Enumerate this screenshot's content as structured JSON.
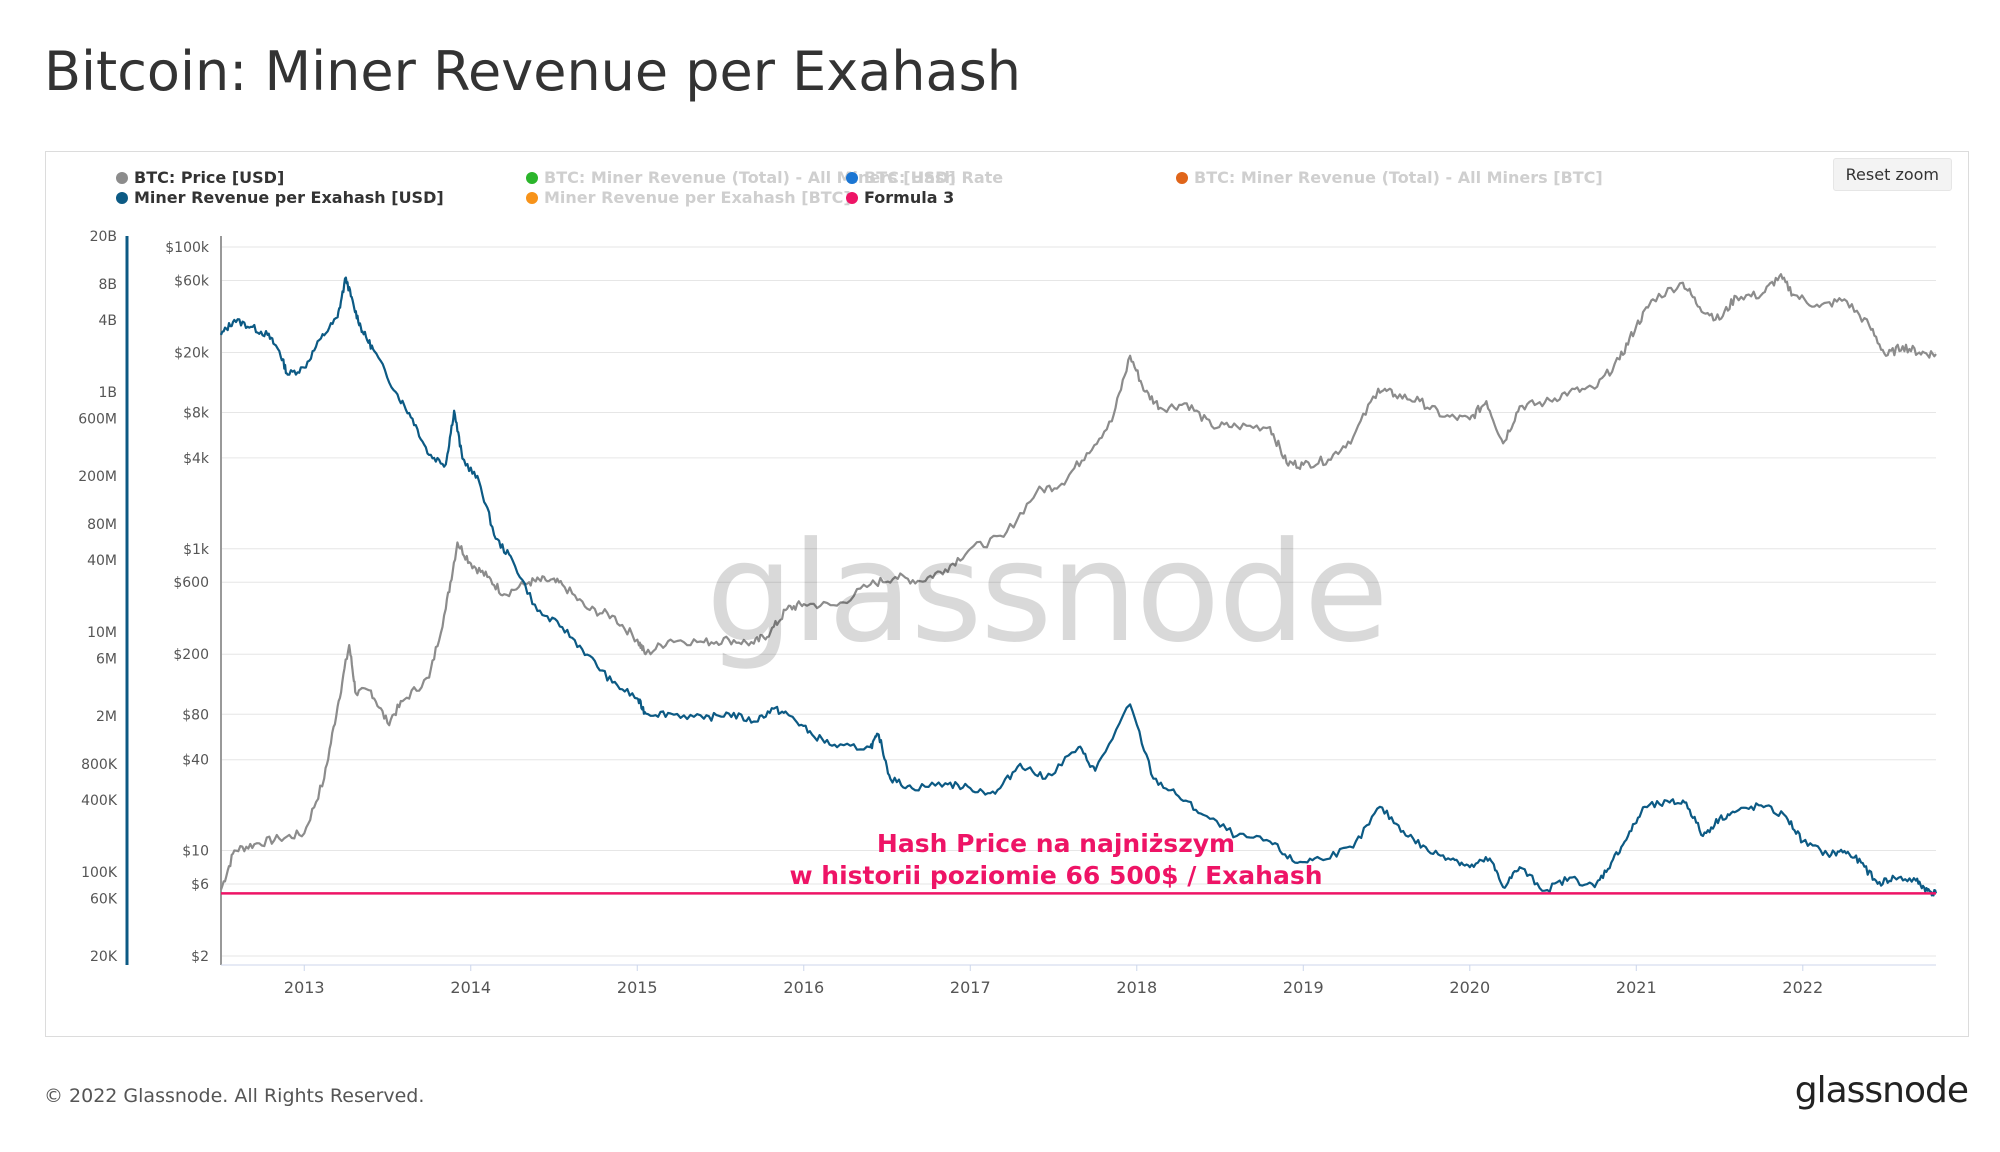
{
  "page": {
    "title": "Bitcoin: Miner Revenue per Exahash",
    "footer": "© 2022 Glassnode. All Rights Reserved.",
    "logo": "glassnode",
    "watermark": "glassnode"
  },
  "controls": {
    "reset_zoom": "Reset zoom"
  },
  "legend": [
    {
      "label": "BTC: Price [USD]",
      "color": "#8c8c8c",
      "active": true
    },
    {
      "label": "Miner Revenue per Exahash [USD]",
      "color": "#0c5a84",
      "active": true
    },
    {
      "label": "BTC: Miner Revenue (Total) - All Miners [USD]",
      "color": "#2bb52b",
      "active": false
    },
    {
      "label": "Miner Revenue per Exahash [BTC]",
      "color": "#f7931a",
      "active": false
    },
    {
      "label": "BTC: Hash Rate",
      "color": "#1b76d3",
      "active": false
    },
    {
      "label": "Formula 3",
      "color": "#ee1466",
      "active": true
    },
    {
      "label": "BTC: Miner Revenue (Total) - All Miners [BTC]",
      "color": "#e0651a",
      "active": false
    }
  ],
  "annotation": {
    "line1": "Hash Price na najniższym",
    "line2": "w historii poziomie 66 500$ / Exahash"
  },
  "chart_data": {
    "type": "line",
    "x_axis": {
      "ticks": [
        "2013",
        "2014",
        "2015",
        "2016",
        "2017",
        "2018",
        "2019",
        "2020",
        "2021",
        "2022"
      ],
      "range": [
        2012.5,
        2022.8
      ]
    },
    "y_axis_price": {
      "scale": "log",
      "range": [
        2,
        100000
      ],
      "ticks": [
        "$2",
        "$6",
        "$10",
        "$40",
        "$80",
        "$200",
        "$600",
        "$1k",
        "$4k",
        "$8k",
        "$20k",
        "$60k",
        "$100k"
      ]
    },
    "y_axis_revenue": {
      "scale": "log",
      "range": [
        20000,
        20000000000
      ],
      "ticks": [
        "20K",
        "60K",
        "100K",
        "400K",
        "800K",
        "2M",
        "6M",
        "10M",
        "40M",
        "80M",
        "200M",
        "600M",
        "1B",
        "4B",
        "8B",
        "20B"
      ]
    },
    "series": [
      {
        "name": "BTC: Price [USD]",
        "axis": "price",
        "color": "#8c8c8c",
        "points": [
          [
            2012.5,
            5.5
          ],
          [
            2012.58,
            10
          ],
          [
            2012.7,
            11
          ],
          [
            2012.85,
            12
          ],
          [
            2013.0,
            13
          ],
          [
            2013.12,
            30
          ],
          [
            2013.2,
            90
          ],
          [
            2013.27,
            230
          ],
          [
            2013.31,
            110
          ],
          [
            2013.4,
            115
          ],
          [
            2013.5,
            70
          ],
          [
            2013.6,
            100
          ],
          [
            2013.75,
            140
          ],
          [
            2013.85,
            400
          ],
          [
            2013.92,
            1100
          ],
          [
            2014.0,
            800
          ],
          [
            2014.1,
            650
          ],
          [
            2014.2,
            500
          ],
          [
            2014.35,
            600
          ],
          [
            2014.45,
            620
          ],
          [
            2014.55,
            580
          ],
          [
            2014.7,
            400
          ],
          [
            2014.85,
            360
          ],
          [
            2015.0,
            250
          ],
          [
            2015.05,
            200
          ],
          [
            2015.2,
            250
          ],
          [
            2015.4,
            240
          ],
          [
            2015.55,
            250
          ],
          [
            2015.7,
            235
          ],
          [
            2015.8,
            280
          ],
          [
            2015.9,
            400
          ],
          [
            2016.0,
            430
          ],
          [
            2016.2,
            420
          ],
          [
            2016.4,
            580
          ],
          [
            2016.55,
            650
          ],
          [
            2016.7,
            610
          ],
          [
            2016.85,
            730
          ],
          [
            2017.0,
            1000
          ],
          [
            2017.2,
            1200
          ],
          [
            2017.4,
            2400
          ],
          [
            2017.55,
            2700
          ],
          [
            2017.7,
            4300
          ],
          [
            2017.85,
            7000
          ],
          [
            2017.96,
            19000
          ],
          [
            2018.05,
            11000
          ],
          [
            2018.15,
            8500
          ],
          [
            2018.3,
            9200
          ],
          [
            2018.45,
            6500
          ],
          [
            2018.6,
            6500
          ],
          [
            2018.8,
            6400
          ],
          [
            2018.9,
            3700
          ],
          [
            2019.0,
            3600
          ],
          [
            2019.15,
            3900
          ],
          [
            2019.3,
            5500
          ],
          [
            2019.45,
            11500
          ],
          [
            2019.55,
            10500
          ],
          [
            2019.7,
            9500
          ],
          [
            2019.85,
            7500
          ],
          [
            2020.0,
            7200
          ],
          [
            2020.1,
            9500
          ],
          [
            2020.2,
            5000
          ],
          [
            2020.3,
            8800
          ],
          [
            2020.45,
            9300
          ],
          [
            2020.6,
            11000
          ],
          [
            2020.75,
            11500
          ],
          [
            2020.9,
            18000
          ],
          [
            2021.0,
            30000
          ],
          [
            2021.1,
            45000
          ],
          [
            2021.28,
            58000
          ],
          [
            2021.38,
            40000
          ],
          [
            2021.5,
            33000
          ],
          [
            2021.6,
            47000
          ],
          [
            2021.75,
            48000
          ],
          [
            2021.86,
            64000
          ],
          [
            2021.95,
            48000
          ],
          [
            2022.1,
            40000
          ],
          [
            2022.25,
            45000
          ],
          [
            2022.4,
            30000
          ],
          [
            2022.5,
            19000
          ],
          [
            2022.6,
            22000
          ],
          [
            2022.7,
            20000
          ],
          [
            2022.8,
            19500
          ]
        ]
      },
      {
        "name": "Miner Revenue per Exahash [USD]",
        "axis": "revenue",
        "color": "#0c5a84",
        "points": [
          [
            2012.5,
            3000000000
          ],
          [
            2012.58,
            4000000000
          ],
          [
            2012.68,
            3500000000
          ],
          [
            2012.78,
            3000000000
          ],
          [
            2012.85,
            2200000000
          ],
          [
            2012.9,
            1400000000
          ],
          [
            2013.0,
            1600000000
          ],
          [
            2013.1,
            2800000000
          ],
          [
            2013.2,
            4200000000
          ],
          [
            2013.25,
            9000000000
          ],
          [
            2013.3,
            5000000000
          ],
          [
            2013.35,
            3200000000
          ],
          [
            2013.42,
            2200000000
          ],
          [
            2013.55,
            1000000000
          ],
          [
            2013.65,
            600000000
          ],
          [
            2013.75,
            300000000
          ],
          [
            2013.85,
            250000000
          ],
          [
            2013.9,
            700000000
          ],
          [
            2013.95,
            280000000
          ],
          [
            2014.05,
            180000000
          ],
          [
            2014.15,
            60000000
          ],
          [
            2014.25,
            40000000
          ],
          [
            2014.4,
            15000000
          ],
          [
            2014.55,
            11000000
          ],
          [
            2014.7,
            6500000
          ],
          [
            2014.85,
            3800000
          ],
          [
            2015.0,
            2800000
          ],
          [
            2015.05,
            2100000
          ],
          [
            2015.2,
            2100000
          ],
          [
            2015.4,
            1900000
          ],
          [
            2015.55,
            2100000
          ],
          [
            2015.7,
            1800000
          ],
          [
            2015.82,
            2300000
          ],
          [
            2015.92,
            2000000
          ],
          [
            2016.05,
            1400000
          ],
          [
            2016.2,
            1100000
          ],
          [
            2016.4,
            1100000
          ],
          [
            2016.45,
            1400000
          ],
          [
            2016.52,
            600000
          ],
          [
            2016.65,
            500000
          ],
          [
            2016.85,
            550000
          ],
          [
            2017.0,
            500000
          ],
          [
            2017.15,
            450000
          ],
          [
            2017.3,
            800000
          ],
          [
            2017.45,
            600000
          ],
          [
            2017.65,
            1100000
          ],
          [
            2017.75,
            700000
          ],
          [
            2017.96,
            2500000
          ],
          [
            2018.1,
            600000
          ],
          [
            2018.25,
            430000
          ],
          [
            2018.4,
            300000
          ],
          [
            2018.6,
            200000
          ],
          [
            2018.8,
            180000
          ],
          [
            2018.95,
            120000
          ],
          [
            2019.1,
            130000
          ],
          [
            2019.3,
            160000
          ],
          [
            2019.46,
            350000
          ],
          [
            2019.6,
            220000
          ],
          [
            2019.75,
            150000
          ],
          [
            2019.9,
            130000
          ],
          [
            2020.0,
            110000
          ],
          [
            2020.12,
            130000
          ],
          [
            2020.2,
            75000
          ],
          [
            2020.3,
            110000
          ],
          [
            2020.45,
            70000
          ],
          [
            2020.6,
            90000
          ],
          [
            2020.75,
            75000
          ],
          [
            2020.85,
            120000
          ],
          [
            2020.95,
            200000
          ],
          [
            2021.05,
            350000
          ],
          [
            2021.2,
            380000
          ],
          [
            2021.3,
            380000
          ],
          [
            2021.4,
            200000
          ],
          [
            2021.5,
            280000
          ],
          [
            2021.6,
            320000
          ],
          [
            2021.75,
            360000
          ],
          [
            2021.9,
            290000
          ],
          [
            2022.0,
            180000
          ],
          [
            2022.15,
            140000
          ],
          [
            2022.25,
            150000
          ],
          [
            2022.35,
            120000
          ],
          [
            2022.45,
            80000
          ],
          [
            2022.55,
            90000
          ],
          [
            2022.68,
            85000
          ],
          [
            2022.75,
            70000
          ],
          [
            2022.8,
            66500
          ]
        ]
      },
      {
        "name": "Formula 3",
        "axis": "revenue",
        "color": "#ee1466",
        "points": [
          [
            2012.5,
            66500
          ],
          [
            2022.8,
            66500
          ]
        ]
      }
    ]
  }
}
